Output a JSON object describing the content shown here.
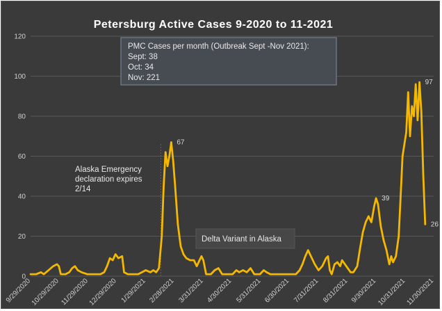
{
  "chart_data": {
    "type": "line",
    "title": "Petersburg Active Cases 9-2020 to 11-2021",
    "xlabel": "",
    "ylabel": "",
    "ylim": [
      0,
      120
    ],
    "yticks": [
      0,
      20,
      40,
      60,
      80,
      100,
      120
    ],
    "grid": true,
    "colors": {
      "line": "#f5b800",
      "background": "#3a3a3a",
      "grid": "#585858",
      "marker": "#c0392b"
    },
    "x_tick_labels": [
      "9/29/2020",
      "10/29/2020",
      "11/29/2020",
      "12/29/2020",
      "1/29/2021",
      "2/28/2021",
      "3/31/2021",
      "4/30/2021",
      "5/31/2021",
      "6/30/2021",
      "7/31/2021",
      "8/31/2021",
      "9/30/2021",
      "10/31/2021",
      "11/30/2021"
    ],
    "series": [
      {
        "name": "",
        "points": [
          [
            "2020-09-29",
            1
          ],
          [
            "2020-10-05",
            1
          ],
          [
            "2020-10-10",
            2
          ],
          [
            "2020-10-13",
            1
          ],
          [
            "2020-10-18",
            3
          ],
          [
            "2020-10-23",
            5
          ],
          [
            "2020-10-27",
            6
          ],
          [
            "2020-10-29",
            5
          ],
          [
            "2020-10-31",
            1
          ],
          [
            "2020-11-05",
            1
          ],
          [
            "2020-11-09",
            2
          ],
          [
            "2020-11-12",
            4
          ],
          [
            "2020-11-15",
            5
          ],
          [
            "2020-11-18",
            3
          ],
          [
            "2020-11-22",
            2
          ],
          [
            "2020-11-28",
            1
          ],
          [
            "2020-12-05",
            1
          ],
          [
            "2020-12-12",
            1
          ],
          [
            "2020-12-16",
            2
          ],
          [
            "2020-12-19",
            5
          ],
          [
            "2020-12-22",
            9
          ],
          [
            "2020-12-25",
            8
          ],
          [
            "2020-12-28",
            11
          ],
          [
            "2020-12-31",
            9
          ],
          [
            "2021-01-04",
            10
          ],
          [
            "2021-01-06",
            2
          ],
          [
            "2021-01-10",
            1
          ],
          [
            "2021-01-16",
            1
          ],
          [
            "2021-01-21",
            1
          ],
          [
            "2021-01-25",
            2
          ],
          [
            "2021-01-29",
            3
          ],
          [
            "2021-02-03",
            2
          ],
          [
            "2021-02-06",
            3
          ],
          [
            "2021-02-09",
            2
          ],
          [
            "2021-02-12",
            4
          ],
          [
            "2021-02-15",
            20
          ],
          [
            "2021-02-17",
            45
          ],
          [
            "2021-02-19",
            62
          ],
          [
            "2021-02-21",
            55
          ],
          [
            "2021-02-23",
            60
          ],
          [
            "2021-02-25",
            67
          ],
          [
            "2021-02-27",
            58
          ],
          [
            "2021-03-01",
            46
          ],
          [
            "2021-03-04",
            26
          ],
          [
            "2021-03-07",
            15
          ],
          [
            "2021-03-10",
            11
          ],
          [
            "2021-03-13",
            9
          ],
          [
            "2021-03-17",
            8
          ],
          [
            "2021-03-21",
            8
          ],
          [
            "2021-03-24",
            5
          ],
          [
            "2021-03-27",
            8
          ],
          [
            "2021-03-29",
            10
          ],
          [
            "2021-03-31",
            8
          ],
          [
            "2021-04-03",
            1
          ],
          [
            "2021-04-08",
            1
          ],
          [
            "2021-04-12",
            3
          ],
          [
            "2021-04-16",
            4
          ],
          [
            "2021-04-20",
            1
          ],
          [
            "2021-04-26",
            1
          ],
          [
            "2021-05-01",
            1
          ],
          [
            "2021-05-05",
            3
          ],
          [
            "2021-05-08",
            2
          ],
          [
            "2021-05-12",
            3
          ],
          [
            "2021-05-16",
            2
          ],
          [
            "2021-05-20",
            4
          ],
          [
            "2021-05-24",
            1
          ],
          [
            "2021-05-30",
            1
          ],
          [
            "2021-06-03",
            3
          ],
          [
            "2021-06-06",
            2
          ],
          [
            "2021-06-10",
            1
          ],
          [
            "2021-06-18",
            1
          ],
          [
            "2021-06-25",
            1
          ],
          [
            "2021-07-01",
            1
          ],
          [
            "2021-07-07",
            1
          ],
          [
            "2021-07-11",
            3
          ],
          [
            "2021-07-14",
            6
          ],
          [
            "2021-07-17",
            10
          ],
          [
            "2021-07-20",
            13
          ],
          [
            "2021-07-23",
            10
          ],
          [
            "2021-07-27",
            6
          ],
          [
            "2021-07-31",
            3
          ],
          [
            "2021-08-04",
            5
          ],
          [
            "2021-08-08",
            9
          ],
          [
            "2021-08-10",
            10
          ],
          [
            "2021-08-12",
            3
          ],
          [
            "2021-08-14",
            1
          ],
          [
            "2021-08-17",
            6
          ],
          [
            "2021-08-20",
            7
          ],
          [
            "2021-08-23",
            5
          ],
          [
            "2021-08-25",
            8
          ],
          [
            "2021-08-28",
            6
          ],
          [
            "2021-08-31",
            4
          ],
          [
            "2021-09-03",
            2
          ],
          [
            "2021-09-06",
            2
          ],
          [
            "2021-09-10",
            5
          ],
          [
            "2021-09-13",
            14
          ],
          [
            "2021-09-16",
            22
          ],
          [
            "2021-09-19",
            27
          ],
          [
            "2021-09-22",
            30
          ],
          [
            "2021-09-25",
            27
          ],
          [
            "2021-09-28",
            35
          ],
          [
            "2021-09-30",
            39
          ],
          [
            "2021-10-02",
            36
          ],
          [
            "2021-10-05",
            25
          ],
          [
            "2021-10-08",
            18
          ],
          [
            "2021-10-11",
            13
          ],
          [
            "2021-10-14",
            6
          ],
          [
            "2021-10-16",
            10
          ],
          [
            "2021-10-18",
            7
          ],
          [
            "2021-10-21",
            10
          ],
          [
            "2021-10-24",
            20
          ],
          [
            "2021-10-26",
            40
          ],
          [
            "2021-10-28",
            60
          ],
          [
            "2021-10-30",
            66
          ],
          [
            "2021-11-01",
            72
          ],
          [
            "2021-11-03",
            92
          ],
          [
            "2021-11-05",
            70
          ],
          [
            "2021-11-07",
            85
          ],
          [
            "2021-11-09",
            80
          ],
          [
            "2021-11-11",
            96
          ],
          [
            "2021-11-13",
            78
          ],
          [
            "2021-11-15",
            97
          ],
          [
            "2021-11-17",
            82
          ],
          [
            "2021-11-19",
            50
          ],
          [
            "2021-11-21",
            26
          ]
        ]
      }
    ],
    "annotations": [
      {
        "name": "pmc-box",
        "lines": [
          "PMC Cases per month (Outbreak Sept -Nov 2021):",
          "Sept: 38",
          "Oct: 34",
          "Nov: 221"
        ]
      },
      {
        "name": "emergency",
        "date": "2021-02-14",
        "lines": [
          "Alaska Emergency",
          "declaration expires",
          "2/14"
        ]
      },
      {
        "name": "delta",
        "lines": [
          "Delta Variant in Alaska"
        ]
      }
    ],
    "point_labels": [
      {
        "date": "2021-02-25",
        "y": 67,
        "text": "67"
      },
      {
        "date": "2021-09-30",
        "y": 39,
        "text": "39"
      },
      {
        "date": "2021-11-15",
        "y": 97,
        "text": "97"
      },
      {
        "date": "2021-11-21",
        "y": 26,
        "text": "26"
      }
    ]
  }
}
